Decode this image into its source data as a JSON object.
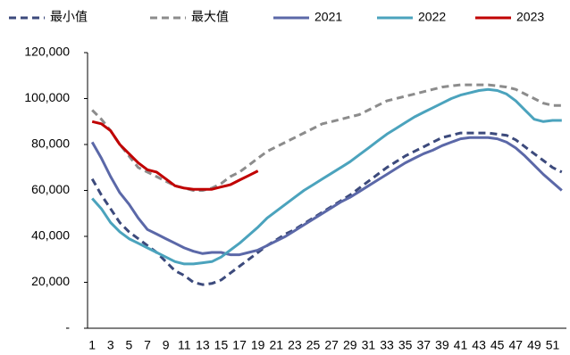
{
  "chart_data": {
    "type": "line",
    "categories": [
      1,
      null,
      3,
      null,
      5,
      null,
      7,
      null,
      9,
      null,
      11,
      null,
      13,
      null,
      15,
      null,
      17,
      null,
      19,
      null,
      21,
      null,
      23,
      null,
      25,
      null,
      27,
      null,
      29,
      null,
      31,
      null,
      33,
      null,
      35,
      null,
      37,
      null,
      39,
      null,
      41,
      null,
      43,
      null,
      45,
      null,
      47,
      null,
      49,
      null,
      51,
      null
    ],
    "ylim": [
      0,
      120000
    ],
    "yticks": [
      {
        "value": 0,
        "label": "-"
      },
      {
        "value": 20000,
        "label": "20,000"
      },
      {
        "value": 40000,
        "label": "40,000"
      },
      {
        "value": 60000,
        "label": "60,000"
      },
      {
        "value": 80000,
        "label": "80,000"
      },
      {
        "value": 100000,
        "label": "100,000"
      },
      {
        "value": 120000,
        "label": "120,000"
      }
    ],
    "series": [
      {
        "name": "最小值",
        "color": "#3c4a7c",
        "dashed": true,
        "values": [
          65000,
          58000,
          52000,
          46000,
          42000,
          39000,
          36000,
          33000,
          29000,
          25000,
          23000,
          20000,
          19000,
          19500,
          21000,
          24000,
          27000,
          30000,
          33000,
          36000,
          38500,
          41000,
          43000,
          45500,
          48000,
          50500,
          53000,
          55500,
          58000,
          61000,
          64000,
          67000,
          70000,
          72500,
          75000,
          77000,
          79000,
          81000,
          83000,
          84000,
          85000,
          85000,
          85000,
          85000,
          84500,
          84000,
          82000,
          79000,
          76000,
          73000,
          70000,
          68000
        ]
      },
      {
        "name": "最大值",
        "color": "#8c8c8c",
        "dashed": true,
        "values": [
          95000,
          91000,
          86000,
          80000,
          75000,
          70000,
          68000,
          66000,
          64000,
          62000,
          61000,
          60000,
          60000,
          61000,
          63000,
          66000,
          68000,
          71000,
          74000,
          77000,
          79000,
          81000,
          83000,
          85000,
          87000,
          89000,
          90000,
          91000,
          92000,
          93000,
          95000,
          97000,
          99000,
          100000,
          101000,
          102000,
          103000,
          104000,
          105000,
          105500,
          106000,
          106000,
          106000,
          106000,
          105500,
          105000,
          104000,
          102000,
          100000,
          98000,
          97000,
          97000
        ]
      },
      {
        "name": "2021",
        "color": "#5b68a8",
        "dashed": false,
        "values": [
          81000,
          74000,
          66000,
          59000,
          54000,
          48000,
          43000,
          41000,
          39000,
          37000,
          35000,
          33500,
          32500,
          33000,
          33000,
          32000,
          32000,
          33000,
          34000,
          36000,
          38000,
          40000,
          42500,
          45000,
          47500,
          50000,
          52500,
          55000,
          57000,
          59500,
          62000,
          64500,
          67000,
          69500,
          72000,
          74000,
          76000,
          77500,
          79500,
          81000,
          82500,
          83000,
          83000,
          83000,
          82500,
          81000,
          78500,
          75000,
          71000,
          67000,
          63500,
          60000
        ]
      },
      {
        "name": "2022",
        "color": "#4ba3bd",
        "dashed": false,
        "values": [
          56500,
          52000,
          46000,
          42000,
          39000,
          37000,
          35000,
          33000,
          31000,
          29000,
          28000,
          28000,
          28500,
          29000,
          31000,
          34000,
          37000,
          40500,
          44000,
          48000,
          51000,
          54000,
          57000,
          60000,
          62500,
          65000,
          67500,
          70000,
          72500,
          75500,
          78500,
          81500,
          84500,
          87000,
          89500,
          92000,
          94000,
          96000,
          98000,
          100000,
          101500,
          102500,
          103500,
          104000,
          103500,
          102000,
          99000,
          95000,
          91000,
          90000,
          90500,
          90500
        ]
      },
      {
        "name": "2023",
        "color": "#c00000",
        "dashed": false,
        "values": [
          90000,
          89000,
          86000,
          80000,
          76000,
          72000,
          69000,
          68000,
          65000,
          62000,
          61000,
          60500,
          60500,
          60500,
          61500,
          62500,
          64500,
          66500,
          68500,
          null,
          null,
          null,
          null,
          null,
          null,
          null,
          null,
          null,
          null,
          null,
          null,
          null,
          null,
          null,
          null,
          null,
          null,
          null,
          null,
          null,
          null,
          null,
          null,
          null,
          null,
          null,
          null,
          null,
          null,
          null,
          null,
          null
        ]
      }
    ]
  }
}
